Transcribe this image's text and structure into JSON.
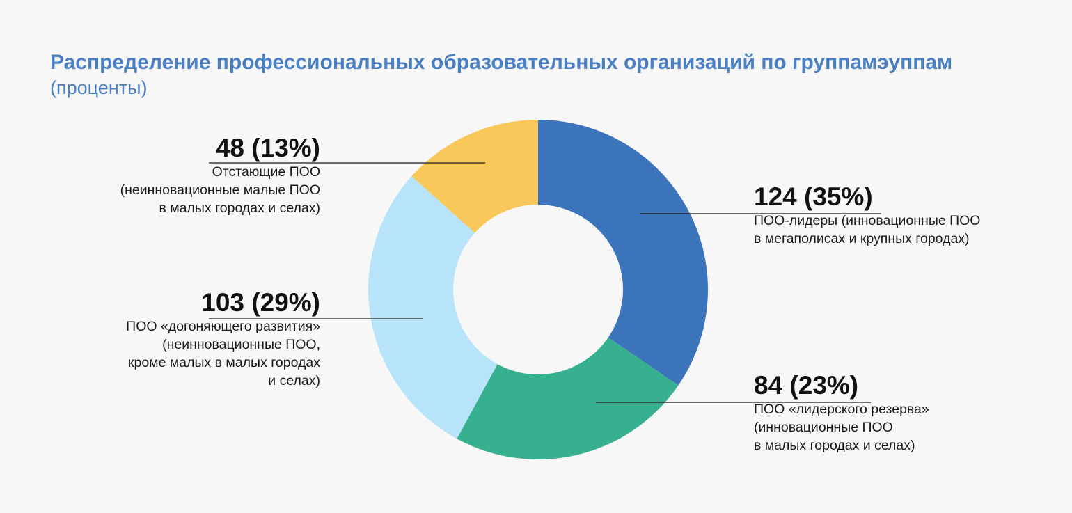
{
  "title": "Распределение профессиональных образовательных организаций по группамэуппам",
  "subtitle": "(проценты)",
  "chart_data": {
    "type": "pie",
    "donut": true,
    "title": "Распределение профессиональных образовательных организаций по группамэуппам",
    "subtitle": "(проценты)",
    "slices": [
      {
        "value_label": "124 (35%)",
        "count": 124,
        "percent": 35,
        "color": "#3b74bb",
        "desc": [
          "ПОО-лидеры (инновационные ПОО",
          "в мегаполисах и крупных городах)"
        ]
      },
      {
        "value_label": "84 (23%)",
        "count": 84,
        "percent": 23,
        "color": "#37b08f",
        "desc": [
          "ПОО «лидерского резерва»",
          "(инновационные ПОО",
          "в малых городах и селах)"
        ]
      },
      {
        "value_label": "103 (29%)",
        "count": 103,
        "percent": 29,
        "color": "#b7e4f8",
        "desc": [
          "ПОО «догоняющего развития»",
          "(неинновационные ПОО,",
          "кроме малых в малых городах",
          "и селах)"
        ]
      },
      {
        "value_label": "48 (13%)",
        "count": 48,
        "percent": 13,
        "color": "#f8c95a",
        "desc": [
          "Отстающие ПОО",
          "(неинновационные малые ПОО",
          "в малых городах и селах)"
        ]
      }
    ]
  }
}
